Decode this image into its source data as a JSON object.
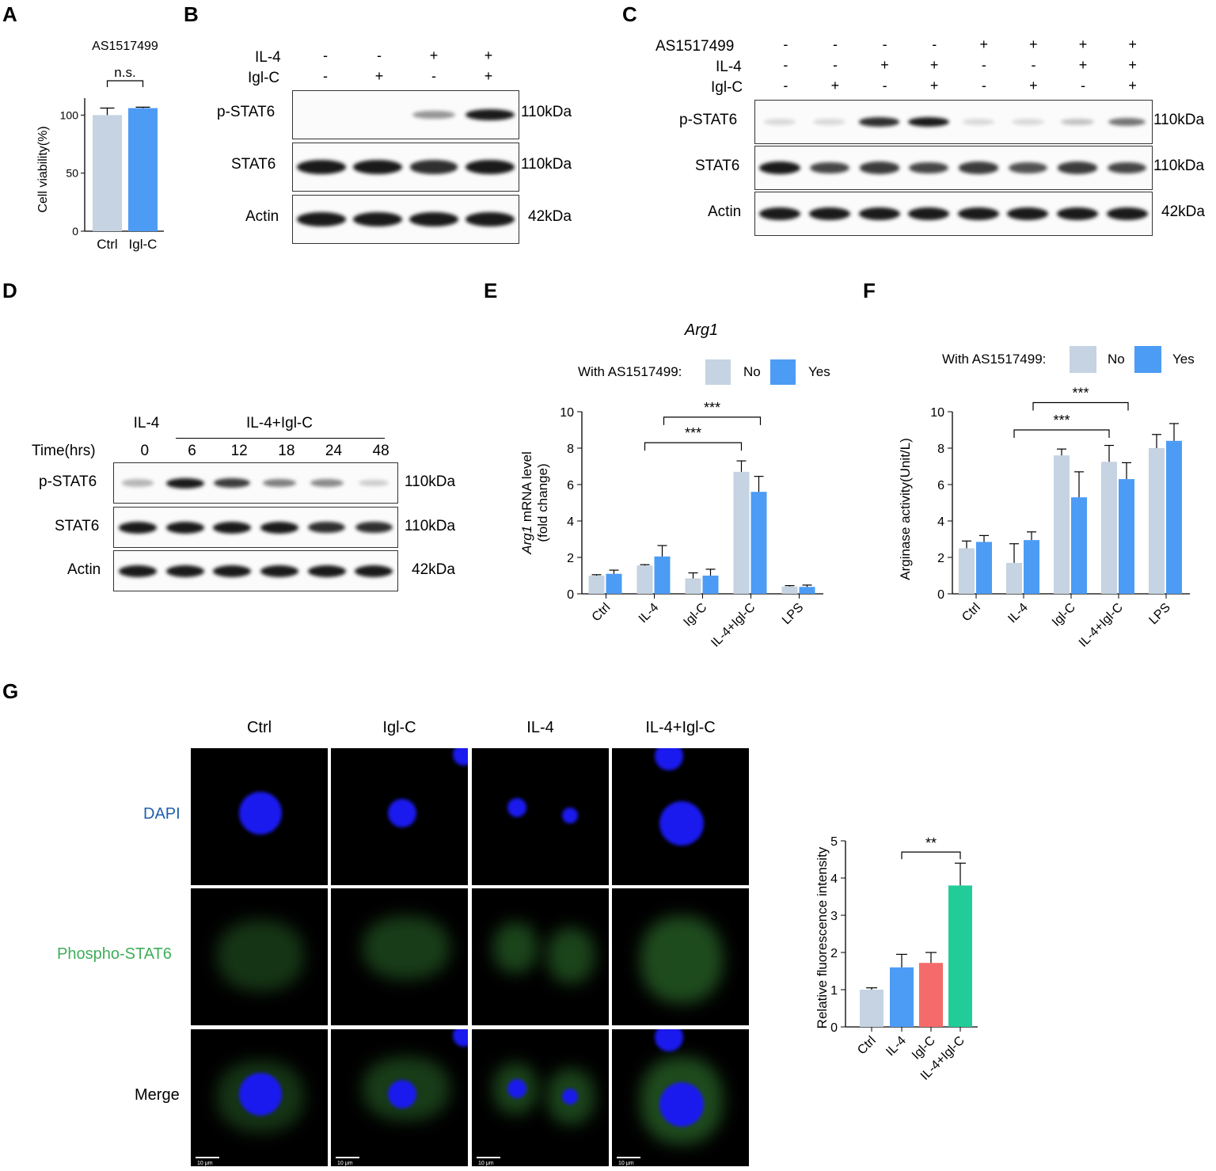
{
  "panel_labels": {
    "a": "A",
    "b": "B",
    "c": "C",
    "d": "D",
    "e": "E",
    "f": "F",
    "g": "G"
  },
  "panel_a": {
    "title": "AS1517499",
    "sig": "n.s.",
    "chart_data": {
      "type": "bar",
      "categories": [
        "Ctrl",
        "Igl-C"
      ],
      "values": [
        100,
        106
      ],
      "errors": [
        6,
        0.8
      ],
      "colors": [
        "#c5d3e2",
        "#4c9cf5"
      ],
      "title": "AS1517499",
      "xlabel": "",
      "ylabel": "Cell viability(%)",
      "ylim": [
        0,
        120
      ],
      "yticks": [
        0,
        50,
        100
      ]
    }
  },
  "panel_b": {
    "row_labels": [
      "IL-4",
      "Igl-C"
    ],
    "signs": [
      [
        "-",
        "-",
        "+",
        "+"
      ],
      [
        "-",
        "+",
        "-",
        "+"
      ]
    ],
    "blots": [
      {
        "name": "p-STAT6",
        "size": "110kDa",
        "intensity": [
          0,
          0,
          0.45,
          1.0
        ]
      },
      {
        "name": "STAT6",
        "size": "110kDa",
        "intensity": [
          1,
          1,
          0.9,
          1
        ]
      },
      {
        "name": "Actin",
        "size": "42kDa",
        "intensity": [
          1,
          1,
          1,
          1
        ]
      }
    ]
  },
  "panel_c": {
    "row_labels": [
      "AS1517499",
      "IL-4",
      "Igl-C"
    ],
    "signs": [
      [
        "-",
        "-",
        "-",
        "-",
        "+",
        "+",
        "+",
        "+"
      ],
      [
        "-",
        "-",
        "+",
        "+",
        "-",
        "-",
        "+",
        "+"
      ],
      [
        "-",
        "+",
        "-",
        "+",
        "-",
        "+",
        "-",
        "+"
      ]
    ],
    "blots": [
      {
        "name": "p-STAT6",
        "size": "110kDa",
        "intensity": [
          0.05,
          0.15,
          0.9,
          1.0,
          0.05,
          0.15,
          0.25,
          0.6
        ]
      },
      {
        "name": "STAT6",
        "size": "110kDa",
        "intensity": [
          1,
          0.8,
          0.85,
          0.8,
          0.85,
          0.75,
          0.85,
          0.8
        ]
      },
      {
        "name": "Actin",
        "size": "42kDa",
        "intensity": [
          1,
          1,
          1,
          1,
          1,
          1,
          1,
          1
        ]
      }
    ]
  },
  "panel_d": {
    "group1": "IL-4",
    "group2": "IL-4+Igl-C",
    "time_label": "Time(hrs)",
    "times": [
      "0",
      "6",
      "12",
      "18",
      "24",
      "48"
    ],
    "blots": [
      {
        "name": "p-STAT6",
        "size": "110kDa",
        "intensity": [
          0.3,
          1.0,
          0.85,
          0.55,
          0.5,
          0.2
        ]
      },
      {
        "name": "STAT6",
        "size": "110kDa",
        "intensity": [
          1,
          1,
          1,
          1,
          0.9,
          0.9
        ]
      },
      {
        "name": "Actin",
        "size": "42kDa",
        "intensity": [
          1,
          1,
          1,
          1,
          1,
          1
        ]
      }
    ]
  },
  "panel_e": {
    "legend_title": "With AS1517499:",
    "legend": [
      "No",
      "Yes"
    ],
    "sig": [
      "***",
      "***"
    ],
    "chart_data": {
      "type": "bar",
      "title": "Arg1",
      "categories": [
        "Ctrl",
        "IL-4",
        "Igl-C",
        "IL-4+Igl-C",
        "LPS"
      ],
      "series": [
        {
          "name": "No",
          "color": "#c5d3e2",
          "values": [
            1.0,
            1.55,
            0.85,
            6.7,
            0.4
          ],
          "errors": [
            0.05,
            0.05,
            0.3,
            0.6,
            0.05
          ]
        },
        {
          "name": "Yes",
          "color": "#4c9cf5",
          "values": [
            1.1,
            2.05,
            1.0,
            5.6,
            0.38
          ],
          "errors": [
            0.2,
            0.6,
            0.35,
            0.85,
            0.1
          ]
        }
      ],
      "ylabel_italic": "Arg1",
      "ylabel_rest": " mRNA level",
      "ylabel2": "(fold change)",
      "ylim": [
        0,
        10
      ],
      "yticks": [
        0,
        2,
        4,
        6,
        8,
        10
      ]
    }
  },
  "panel_f": {
    "legend_title": "With AS1517499:",
    "legend": [
      "No",
      "Yes"
    ],
    "sig": [
      "***",
      "***"
    ],
    "chart_data": {
      "type": "bar",
      "categories": [
        "Ctrl",
        "IL-4",
        "Igl-C",
        "IL-4+Igl-C",
        "LPS"
      ],
      "series": [
        {
          "name": "No",
          "color": "#c5d3e2",
          "values": [
            2.5,
            1.7,
            7.6,
            7.25,
            8.0
          ],
          "errors": [
            0.4,
            1.05,
            0.35,
            0.9,
            0.75
          ]
        },
        {
          "name": "Yes",
          "color": "#4c9cf5",
          "values": [
            2.85,
            2.95,
            5.3,
            6.3,
            8.4
          ],
          "errors": [
            0.35,
            0.45,
            1.4,
            0.9,
            0.95
          ]
        }
      ],
      "ylabel": "Arginase activity(Unit/L)",
      "ylim": [
        0,
        10
      ],
      "yticks": [
        0,
        2,
        4,
        6,
        8,
        10
      ]
    }
  },
  "panel_g": {
    "columns": [
      "Ctrl",
      "Igl-C",
      "IL-4",
      "IL-4+Igl-C"
    ],
    "rows": [
      "DAPI",
      "Phospho-STAT6",
      "Merge"
    ],
    "row_colors": [
      "#1f5fae",
      "#3fae5a",
      "#000000"
    ],
    "scale": "10 μm",
    "chart_data": {
      "type": "bar",
      "categories": [
        "Ctrl",
        "IL-4",
        "Igl-C",
        "IL-4+Igl-C"
      ],
      "values": [
        1.0,
        1.6,
        1.72,
        3.8
      ],
      "errors": [
        0.05,
        0.35,
        0.28,
        0.6
      ],
      "colors": [
        "#c5d3e2",
        "#4c9cf5",
        "#f56b6b",
        "#22cc99"
      ],
      "ylabel": "Relative fluorescence intensity",
      "ylim": [
        0,
        5
      ],
      "yticks": [
        0,
        1,
        2,
        3,
        4,
        5
      ],
      "sig": "**"
    }
  }
}
